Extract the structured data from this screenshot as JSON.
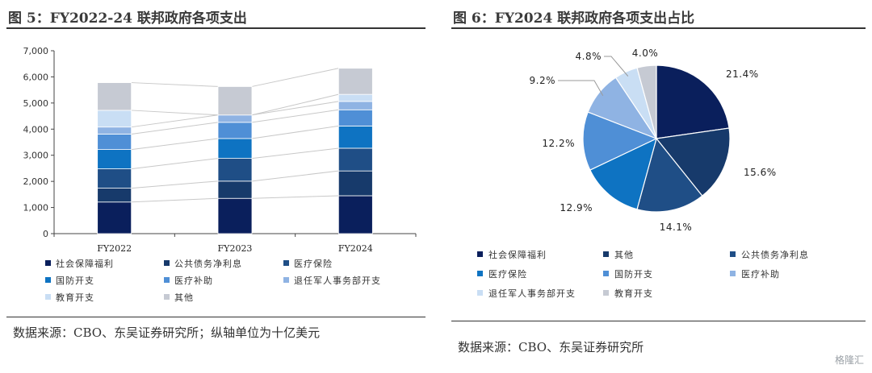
{
  "left_panel": {
    "title": "图 5：FY2022-24 联邦政府各项支出",
    "source": "数据来源：CBO、东吴证券研究所；纵轴单位为十亿美元"
  },
  "right_panel": {
    "title": "图 6：FY2024 联邦政府各项支出占比",
    "source": "数据来源：CBO、东吴证券研究所"
  },
  "watermark": "格隆汇",
  "chart_data": [
    {
      "type": "bar",
      "stacked": true,
      "categories": [
        "FY2022",
        "FY2023",
        "FY2024"
      ],
      "ylim": [
        0,
        7000
      ],
      "yticks": [
        "0",
        "1,000",
        "2,000",
        "3,000",
        "4,000",
        "5,000",
        "6,000",
        "7,000"
      ],
      "legend_position": "bottom",
      "series": [
        {
          "name": "社会保障福利",
          "color": "#0a1f5c",
          "values": [
            1210,
            1350,
            1450
          ]
        },
        {
          "name": "公共债务净利息",
          "color": "#173a6b",
          "values": [
            530,
            660,
            950
          ]
        },
        {
          "name": "医疗保险",
          "color": "#1f4e86",
          "values": [
            740,
            870,
            870
          ]
        },
        {
          "name": "国防开支",
          "color": "#0e73c2",
          "values": [
            740,
            760,
            850
          ]
        },
        {
          "name": "医疗补助",
          "color": "#4f8fd6",
          "values": [
            590,
            620,
            620
          ]
        },
        {
          "name": "退任军人事务部开支",
          "color": "#8fb3e3",
          "values": [
            270,
            280,
            320
          ]
        },
        {
          "name": "教育开支",
          "color": "#c9def4",
          "values": [
            640,
            0,
            270
          ]
        },
        {
          "name": "其他",
          "color": "#c6cad3",
          "values": [
            1060,
            1090,
            1000
          ]
        }
      ]
    },
    {
      "type": "pie",
      "legend_position": "bottom",
      "slices": [
        {
          "name": "社会保障福利",
          "label": "21.4%",
          "value": 21.4,
          "color": "#0a1f5c"
        },
        {
          "name": "其他",
          "label": "15.6%",
          "value": 15.6,
          "color": "#173a6b"
        },
        {
          "name": "公共债务净利息",
          "label": "14.1%",
          "value": 14.1,
          "color": "#1f4e86"
        },
        {
          "name": "医疗保险",
          "label": "12.9%",
          "value": 12.9,
          "color": "#0e73c2"
        },
        {
          "name": "国防开支",
          "label": "12.2%",
          "value": 12.2,
          "color": "#4f8fd6"
        },
        {
          "name": "医疗补助",
          "label": "9.2%",
          "value": 9.2,
          "color": "#8fb3e3"
        },
        {
          "name": "退任军人事务部开支",
          "label": "4.8%",
          "value": 4.8,
          "color": "#c9def4"
        },
        {
          "name": "教育开支",
          "label": "4.0%",
          "value": 4.0,
          "color": "#c6cad3"
        }
      ],
      "legend": [
        {
          "name": "社会保障福利",
          "color": "#0a1f5c"
        },
        {
          "name": "其他",
          "color": "#173a6b"
        },
        {
          "name": "公共债务净利息",
          "color": "#1f4e86"
        },
        {
          "name": "医疗保险",
          "color": "#0e73c2"
        },
        {
          "name": "国防开支",
          "color": "#4f8fd6"
        },
        {
          "name": "医疗补助",
          "color": "#8fb3e3"
        },
        {
          "name": "退任军人事务部开支",
          "color": "#c9def4"
        },
        {
          "name": "教育开支",
          "color": "#c6cad3"
        }
      ]
    }
  ]
}
